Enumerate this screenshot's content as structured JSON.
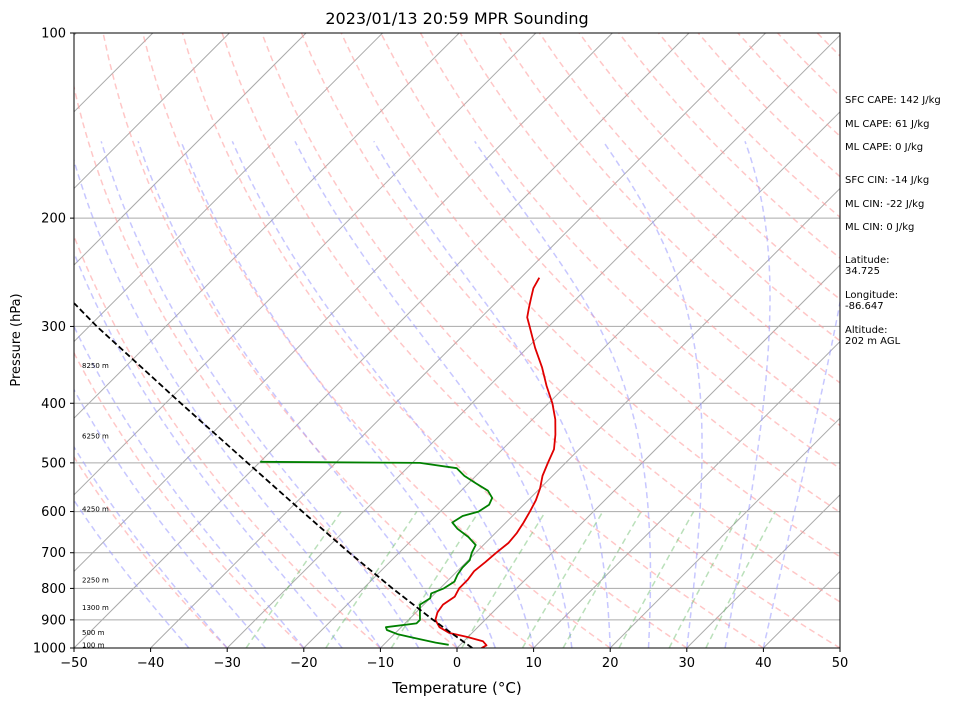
{
  "chart_data": {
    "type": "line",
    "title": "2023/01/13 20:59 MPR Sounding",
    "xlabel": "Temperature (°C)",
    "ylabel": "Pressure (hPa)",
    "xlim": [
      -50,
      50
    ],
    "ylim": [
      1000,
      100
    ],
    "y_scale": "log",
    "x_ticks": [
      -50,
      -40,
      -30,
      -20,
      -10,
      0,
      10,
      20,
      30,
      40,
      50
    ],
    "y_ticks": [
      1000,
      900,
      800,
      700,
      600,
      500,
      400,
      300,
      200,
      100
    ],
    "grid": true,
    "skew": "45 degrees",
    "series": [
      {
        "role": "temperature",
        "color": "#e00000",
        "points": [
          {
            "p": 1000,
            "t": 3.2
          },
          {
            "p": 990,
            "t": 3.5
          },
          {
            "p": 975,
            "t": 2.5
          },
          {
            "p": 960,
            "t": 0.0
          },
          {
            "p": 945,
            "t": -3.0
          },
          {
            "p": 925,
            "t": -5.0
          },
          {
            "p": 900,
            "t": -6.5
          },
          {
            "p": 875,
            "t": -7.2
          },
          {
            "p": 850,
            "t": -7.5
          },
          {
            "p": 825,
            "t": -7.0
          },
          {
            "p": 800,
            "t": -7.5
          },
          {
            "p": 775,
            "t": -7.5
          },
          {
            "p": 750,
            "t": -7.8
          },
          {
            "p": 725,
            "t": -7.5
          },
          {
            "p": 700,
            "t": -7.3
          },
          {
            "p": 675,
            "t": -7.0
          },
          {
            "p": 650,
            "t": -7.2
          },
          {
            "p": 625,
            "t": -7.7
          },
          {
            "p": 600,
            "t": -8.3
          },
          {
            "p": 575,
            "t": -9.0
          },
          {
            "p": 550,
            "t": -10.0
          },
          {
            "p": 525,
            "t": -11.3
          },
          {
            "p": 500,
            "t": -12.3
          },
          {
            "p": 475,
            "t": -13.3
          },
          {
            "p": 450,
            "t": -15.0
          },
          {
            "p": 425,
            "t": -17.0
          },
          {
            "p": 400,
            "t": -19.5
          },
          {
            "p": 375,
            "t": -22.5
          },
          {
            "p": 350,
            "t": -25.5
          },
          {
            "p": 325,
            "t": -29.0
          },
          {
            "p": 300,
            "t": -32.5
          },
          {
            "p": 290,
            "t": -34.0
          },
          {
            "p": 280,
            "t": -35.0
          },
          {
            "p": 270,
            "t": -36.0
          },
          {
            "p": 260,
            "t": -37.0
          },
          {
            "p": 250,
            "t": -37.6
          }
        ]
      },
      {
        "role": "dewpoint",
        "color": "#008000",
        "points": [
          {
            "p": 988,
            "t": -1.5
          },
          {
            "p": 980,
            "t": -3.5
          },
          {
            "p": 970,
            "t": -5.5
          },
          {
            "p": 960,
            "t": -7.5
          },
          {
            "p": 950,
            "t": -9.5
          },
          {
            "p": 935,
            "t": -11.5
          },
          {
            "p": 925,
            "t": -12.0
          },
          {
            "p": 912,
            "t": -8.5
          },
          {
            "p": 900,
            "t": -8.5
          },
          {
            "p": 875,
            "t": -9.5
          },
          {
            "p": 850,
            "t": -10.5
          },
          {
            "p": 830,
            "t": -10.0
          },
          {
            "p": 815,
            "t": -10.5
          },
          {
            "p": 800,
            "t": -9.5
          },
          {
            "p": 780,
            "t": -9.0
          },
          {
            "p": 760,
            "t": -9.5
          },
          {
            "p": 740,
            "t": -9.8
          },
          {
            "p": 720,
            "t": -9.8
          },
          {
            "p": 700,
            "t": -10.5
          },
          {
            "p": 680,
            "t": -11.0
          },
          {
            "p": 660,
            "t": -13.0
          },
          {
            "p": 640,
            "t": -15.5
          },
          {
            "p": 625,
            "t": -17.0
          },
          {
            "p": 610,
            "t": -16.5
          },
          {
            "p": 600,
            "t": -15.0
          },
          {
            "p": 585,
            "t": -14.5
          },
          {
            "p": 570,
            "t": -15.0
          },
          {
            "p": 555,
            "t": -16.5
          },
          {
            "p": 540,
            "t": -19.0
          },
          {
            "p": 525,
            "t": -21.5
          },
          {
            "p": 510,
            "t": -23.5
          },
          {
            "p": 500,
            "t": -29.0
          },
          {
            "p": 498,
            "t": -50.0
          }
        ]
      },
      {
        "role": "parcel",
        "color": "#000000",
        "dash": "dashed",
        "points": [
          {
            "p": 1000,
            "t": 2.0
          },
          {
            "p": 950,
            "t": -2.3
          },
          {
            "p": 900,
            "t": -6.8
          },
          {
            "p": 800,
            "t": -16.2
          },
          {
            "p": 700,
            "t": -26.5
          },
          {
            "p": 600,
            "t": -38.0
          },
          {
            "p": 500,
            "t": -51.5
          },
          {
            "p": 400,
            "t": -68.0
          },
          {
            "p": 300,
            "t": -89.0
          },
          {
            "p": 275,
            "t": -95.0
          }
        ]
      }
    ],
    "height_labels": [
      {
        "p": 348,
        "label": "8250 m"
      },
      {
        "p": 453,
        "label": "6250 m"
      },
      {
        "p": 595,
        "label": "4250 m"
      },
      {
        "p": 776,
        "label": "2250 m"
      },
      {
        "p": 861,
        "label": "1300 m"
      },
      {
        "p": 946,
        "label": "500 m"
      },
      {
        "p": 990,
        "label": "100 m"
      }
    ]
  },
  "annotations": {
    "sfc_cape": "SFC CAPE: 142 J/kg",
    "ml_cape_1": "ML CAPE: 61 J/kg",
    "ml_cape_2": "ML CAPE: 0 J/kg",
    "sfc_cin": "SFC CIN: -14 J/kg",
    "ml_cin_1": "ML CIN: -22 J/kg",
    "ml_cin_2": "ML CIN: 0 J/kg",
    "latitude": "Latitude:\n34.725",
    "longitude": "Longitude:\n-86.647",
    "altitude": "Altitude:\n202 m AGL"
  }
}
